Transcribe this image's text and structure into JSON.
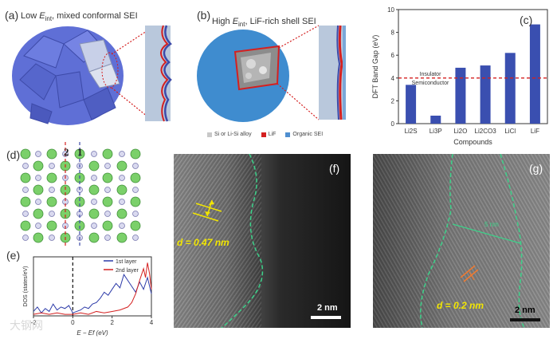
{
  "panel_a": {
    "letter": "(a)",
    "caption_pre": "Low ",
    "caption_E": "E",
    "caption_sub": "int",
    "caption_post": ", mixed conformal SEI"
  },
  "panel_b": {
    "letter": "(b)",
    "caption_pre": "High ",
    "caption_E": "E",
    "caption_sub": "int",
    "caption_post": ", LiF-rich shell SEI",
    "legend": [
      {
        "label": "Si or Li-Si alloy",
        "color": "#c8c8c8"
      },
      {
        "label": "LiF",
        "color": "#d42020"
      },
      {
        "label": "Organic SEI",
        "color": "#4f8fd0"
      }
    ]
  },
  "panel_c": {
    "letter": "(c)"
  },
  "panel_d": {
    "letter": "(d)",
    "label_2": "2",
    "label_1": "1"
  },
  "panel_e": {
    "letter": "(e)"
  },
  "panel_f": {
    "letter": "(f)",
    "annotation": "d = 0.47 nm",
    "scale": "2 nm"
  },
  "panel_g": {
    "letter": "(g)",
    "annotation": "d = 0.2 nm",
    "scale": "2 nm",
    "extra": "5 nm"
  },
  "watermark": "大钢网",
  "chart_data": [
    {
      "type": "bar",
      "categories": [
        "Li2S",
        "Li3P",
        "Li2O",
        "Li2CO3",
        "LiCl",
        "LiF"
      ],
      "values": [
        3.4,
        0.7,
        4.9,
        5.1,
        6.2,
        8.7
      ],
      "xlabel": "Compounds",
      "ylabel": "DFT Band Gap (eV)",
      "ylim": [
        0,
        10
      ],
      "yticks": [
        0,
        2,
        4,
        6,
        8,
        10
      ],
      "threshold": 4,
      "threshold_labels": [
        "Insulator",
        "Semiconductor"
      ],
      "bar_color": "#3a4fb0",
      "threshold_color": "#d42020"
    },
    {
      "type": "line",
      "xlabel": "E − Ef (eV)",
      "ylabel": "DOS (states/eV)",
      "xlim": [
        -2,
        4
      ],
      "xticks": [
        -2,
        0,
        2,
        4
      ],
      "series": [
        {
          "name": "1st layer",
          "color": "#2c3aa8",
          "x": [
            -2.0,
            -1.8,
            -1.6,
            -1.4,
            -1.2,
            -1.0,
            -0.8,
            -0.6,
            -0.4,
            -0.2,
            0.0,
            0.2,
            0.4,
            0.6,
            0.8,
            1.0,
            1.2,
            1.4,
            1.6,
            1.8,
            2.0,
            2.2,
            2.4,
            2.6,
            2.8,
            3.0,
            3.2,
            3.4,
            3.6,
            3.8,
            4.0
          ],
          "y": [
            0.3,
            0.6,
            0.2,
            0.5,
            0.3,
            0.8,
            0.4,
            0.6,
            0.5,
            0.7,
            0.2,
            0.3,
            0.4,
            0.6,
            0.5,
            0.8,
            0.9,
            1.2,
            1.6,
            1.4,
            1.8,
            2.2,
            1.9,
            2.8,
            2.4,
            2.0,
            1.6,
            2.3,
            1.8,
            2.6,
            1.5
          ]
        },
        {
          "name": "2nd layer",
          "color": "#d42020",
          "x": [
            -2.0,
            -1.6,
            -1.2,
            -0.8,
            -0.4,
            0.0,
            0.4,
            0.8,
            1.2,
            1.6,
            2.0,
            2.4,
            2.8,
            3.0,
            3.2,
            3.4,
            3.6,
            3.7,
            3.8,
            3.9,
            4.0
          ],
          "y": [
            0.1,
            0.2,
            0.1,
            0.2,
            0.1,
            0.1,
            0.2,
            0.1,
            0.3,
            0.2,
            0.3,
            0.4,
            0.6,
            0.9,
            1.5,
            2.4,
            3.2,
            2.6,
            3.6,
            2.9,
            1.8
          ]
        }
      ]
    }
  ]
}
